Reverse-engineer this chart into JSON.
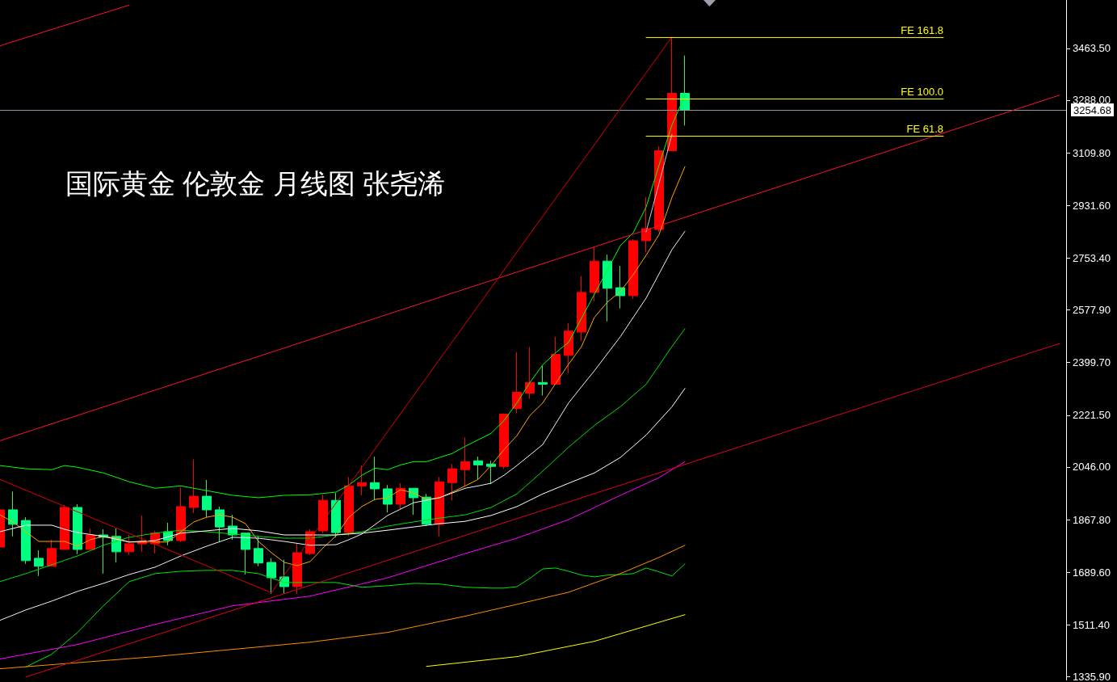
{
  "chart_data": {
    "type": "candlestick",
    "title": "国际黄金 伦敦金 月线图 张尧浠",
    "categories": [
      null,
      null,
      null,
      null,
      null,
      null,
      null,
      null,
      null,
      null,
      null,
      null,
      null,
      null,
      null,
      null,
      null,
      null,
      null,
      null,
      null,
      null,
      null,
      null,
      null,
      null,
      null,
      null,
      null,
      null,
      null,
      null,
      null,
      null,
      null,
      null,
      null,
      null,
      null,
      null,
      null,
      null,
      null,
      null,
      null,
      null,
      null,
      null,
      null,
      null,
      null,
      null,
      null,
      null,
      null,
      null,
      null,
      null,
      null,
      null,
      null,
      null,
      null,
      null,
      null,
      null,
      null,
      null,
      null,
      null,
      null,
      null,
      null,
      null,
      null,
      null,
      null,
      null,
      null,
      null,
      null,
      null,
      null
    ],
    "ohlc": [
      [
        1775,
        1909,
        1767,
        1901
      ],
      [
        1901,
        1963,
        1811,
        1852
      ],
      [
        1865,
        1876,
        1718,
        1729
      ],
      [
        1737,
        1764,
        1677,
        1710
      ],
      [
        1710,
        1800,
        1710,
        1770
      ],
      [
        1767,
        1917,
        1767,
        1909
      ],
      [
        1909,
        1920,
        1751,
        1767
      ],
      [
        1767,
        1838,
        1767,
        1816
      ],
      [
        1816,
        1835,
        1685,
        1808
      ],
      [
        1811,
        1838,
        1723,
        1759
      ],
      [
        1759,
        1816,
        1748,
        1786
      ],
      [
        1786,
        1882,
        1759,
        1794
      ],
      [
        1786,
        1830,
        1753,
        1822
      ],
      [
        1827,
        1857,
        1781,
        1797
      ],
      [
        1797,
        1977,
        1792,
        1912
      ],
      [
        1909,
        2072,
        1890,
        1947
      ],
      [
        1947,
        2002,
        1876,
        1901
      ],
      [
        1901,
        1912,
        1792,
        1843
      ],
      [
        1846,
        1884,
        1800,
        1816
      ],
      [
        1822,
        1824,
        1682,
        1767
      ],
      [
        1770,
        1813,
        1710,
        1721
      ],
      [
        1723,
        1737,
        1617,
        1671
      ],
      [
        1674,
        1732,
        1617,
        1641
      ],
      [
        1641,
        1789,
        1617,
        1756
      ],
      [
        1753,
        1835,
        1748,
        1827
      ],
      [
        1830,
        1952,
        1822,
        1933
      ],
      [
        1933,
        1958,
        1808,
        1824
      ],
      [
        1824,
        2012,
        1813,
        1982
      ],
      [
        1982,
        2051,
        1950,
        1993
      ],
      [
        1993,
        2081,
        1933,
        1972
      ],
      [
        1972,
        1985,
        1892,
        1920
      ],
      [
        1920,
        1991,
        1903,
        1974
      ],
      [
        1974,
        1974,
        1884,
        1942
      ],
      [
        1944,
        1955,
        1846,
        1852
      ],
      [
        1852,
        2012,
        1811,
        1996
      ],
      [
        1993,
        2056,
        1933,
        2040
      ],
      [
        2037,
        2146,
        1980,
        2064
      ],
      [
        2067,
        2081,
        2002,
        2053
      ],
      [
        2056,
        2067,
        1988,
        2048
      ],
      [
        2048,
        2228,
        2040,
        2225
      ],
      [
        2244,
        2435,
        2228,
        2299
      ],
      [
        2296,
        2452,
        2277,
        2332
      ],
      [
        2332,
        2389,
        2288,
        2326
      ],
      [
        2326,
        2487,
        2326,
        2427
      ],
      [
        2424,
        2533,
        2364,
        2506
      ],
      [
        2503,
        2692,
        2473,
        2637
      ],
      [
        2637,
        2790,
        2607,
        2743
      ],
      [
        2743,
        2765,
        2539,
        2651
      ],
      [
        2653,
        2727,
        2583,
        2626
      ],
      [
        2626,
        2817,
        2615,
        2812
      ],
      [
        2812,
        2959,
        2773,
        2853
      ],
      [
        2850,
        3131,
        2842,
        3117
      ],
      [
        3117,
        3502,
        3117,
        3311
      ],
      [
        3311,
        3439,
        3202,
        3254.68
      ],
      null,
      null,
      null,
      null,
      null,
      null,
      null,
      null,
      null,
      null,
      null,
      null,
      null,
      null,
      null,
      null,
      null,
      null,
      null,
      null,
      null,
      null,
      null,
      null,
      null,
      null,
      null,
      null,
      null
    ],
    "colors": [
      "#ff0000",
      "#00ff80",
      "#00ff80",
      "#00ff80",
      "#ff0000",
      "#ff0000",
      "#00ff80",
      "#ff0000",
      "#00ff80",
      "#00ff80",
      "#ff0000",
      "#ff0000",
      "#ff0000",
      "#00ff80",
      "#ff0000",
      "#ff0000",
      "#00ff80",
      "#00ff80",
      "#00ff80",
      "#00ff80",
      "#00ff80",
      "#00ff80",
      "#00ff80",
      "#ff0000",
      "#ff0000",
      "#ff0000",
      "#00ff80",
      "#ff0000",
      "#ff0000",
      "#00ff80",
      "#00ff80",
      "#ff0000",
      "#00ff80",
      "#00ff80",
      "#ff0000",
      "#ff0000",
      "#ff0000",
      "#00ff80",
      "#00ff80",
      "#ff0000",
      "#ff0000",
      "#ff0000",
      "#00ff80",
      "#ff0000",
      "#ff0000",
      "#ff0000",
      "#ff0000",
      "#00ff80",
      "#00ff80",
      "#ff0000",
      "#ff0000",
      "#ff0000",
      "#ff0000",
      "#00ff80",
      null,
      null,
      null,
      null,
      null,
      null,
      null,
      null,
      null,
      null,
      null,
      null,
      null,
      null,
      null,
      null,
      null,
      null,
      null,
      null,
      null,
      null,
      null,
      null,
      null,
      null,
      null,
      null,
      null
    ],
    "series": [
      {
        "type": "line",
        "color": "#ffa500",
        "values": [
          1884,
          1860,
          1827,
          1794,
          1794,
          1794,
          1778,
          1800,
          1811,
          1805,
          1792,
          1792,
          1792,
          1792,
          1827,
          1860,
          1876,
          1884,
          1876,
          1854,
          1794,
          1756,
          1723,
          1712,
          1726,
          1772,
          1813,
          1876,
          1912,
          1936,
          1942,
          1969,
          1958,
          1936,
          1942,
          1961,
          1982,
          2004,
          2051,
          2105,
          2152,
          2220,
          2263,
          2329,
          2394,
          2454,
          2553,
          2604,
          2640,
          2697,
          2763,
          2833,
          2959,
          3063,
          null,
          null,
          null,
          null,
          null,
          null,
          null,
          null,
          null,
          null,
          null,
          null,
          null,
          null,
          null,
          null,
          null,
          null,
          null,
          null,
          null,
          null,
          null,
          null,
          null,
          null,
          null,
          null,
          null
        ]
      },
      {
        "type": "line",
        "color": "#00ff00",
        "values": [
          2051,
          null,
          2040,
          null,
          2037,
          2051,
          2045,
          null,
          2026,
          null,
          1996,
          null,
          1974,
          null,
          1982,
          null,
          1966,
          null,
          1950,
          null,
          1942,
          null,
          1950,
          null,
          1952,
          null,
          1961,
          1985,
          2018,
          2042,
          2037,
          2053,
          2064,
          2064,
          2078,
          2092,
          2116,
          2138,
          2160,
          2203,
          2263,
          2332,
          2392,
          2433,
          2468,
          2550,
          2631,
          2713,
          2795,
          2839,
          2926,
          3068,
          3204,
          3305,
          null,
          null,
          null,
          null,
          null,
          null,
          null,
          null,
          null,
          null,
          null,
          null,
          null,
          null,
          null,
          null,
          null,
          null,
          null,
          null,
          null,
          null,
          null,
          null,
          null,
          null,
          null,
          null,
          null
        ]
      },
      {
        "type": "line",
        "color": "#00dd00",
        "values": [
          1658,
          null,
          1685,
          null,
          1715,
          null,
          1745,
          null,
          1781,
          null,
          1808,
          null,
          1822,
          null,
          1832,
          null,
          1827,
          null,
          1819,
          null,
          1811,
          null,
          1805,
          null,
          1805,
          null,
          1816,
          null,
          1827,
          null,
          1846,
          null,
          1860,
          null,
          1873,
          null,
          1884,
          null,
          1909,
          null,
          1955,
          null,
          2032,
          null,
          2113,
          null,
          2187,
          null,
          2250,
          null,
          2326,
          null,
          2454,
          2514,
          null,
          null,
          null,
          null,
          null,
          null,
          null,
          null,
          null,
          null,
          null,
          null,
          null,
          null,
          null,
          null,
          null,
          null,
          null,
          null,
          null,
          null,
          null,
          null,
          null,
          null,
          null,
          null,
          null
        ]
      },
      {
        "type": "line",
        "color": "#00e600",
        "values": [
          null,
          null,
          1369,
          null,
          1412,
          null,
          1486,
          null,
          1576,
          null,
          1658,
          null,
          1685,
          null,
          1693,
          null,
          1696,
          null,
          1696,
          null,
          1685,
          null,
          1655,
          null,
          1655,
          null,
          1655,
          null,
          1639,
          null,
          1644,
          null,
          1652,
          null,
          1650,
          null,
          1639,
          null,
          1636,
          1636,
          1641,
          1669,
          1701,
          1704,
          1693,
          1680,
          1674,
          1680,
          1682,
          1685,
          1704,
          1691,
          1677,
          1718,
          null,
          null,
          null,
          null,
          null,
          null,
          null,
          null,
          null,
          null,
          null,
          null,
          null,
          null,
          null,
          null,
          null,
          null,
          null,
          null,
          null,
          null,
          null,
          null,
          null,
          null,
          null,
          null,
          null
        ]
      },
      {
        "type": "line",
        "color": "#ffffff",
        "values": [
          1827,
          null,
          1849,
          null,
          1849,
          1835,
          1824,
          null,
          1811,
          null,
          1792,
          null,
          1797,
          null,
          1822,
          null,
          1830,
          null,
          1838,
          null,
          1830,
          null,
          1816,
          null,
          1816,
          null,
          1816,
          null,
          1822,
          null,
          1832,
          null,
          1843,
          null,
          1854,
          null,
          1862,
          null,
          1882,
          null,
          1912,
          null,
          1955,
          null,
          1991,
          null,
          2026,
          null,
          2078,
          null,
          2154,
          null,
          2250,
          2312,
          null,
          null,
          null,
          null,
          null,
          null,
          null,
          null,
          null,
          null,
          null,
          null,
          null,
          null,
          null,
          null,
          null,
          null,
          null,
          null,
          null,
          null,
          null,
          null,
          null,
          null,
          null,
          null,
          null
        ]
      },
      {
        "type": "line",
        "color": "#f0f0f0",
        "values": [
          1527,
          null,
          1562,
          null,
          1592,
          null,
          1625,
          null,
          1652,
          null,
          1682,
          null,
          1707,
          null,
          1745,
          null,
          1778,
          null,
          1808,
          null,
          1805,
          null,
          1794,
          null,
          1781,
          null,
          1783,
          1800,
          1819,
          null,
          1882,
          null,
          1925,
          null,
          1942,
          null,
          1974,
          1982,
          1991,
          2018,
          2051,
          null,
          2122,
          null,
          2263,
          2318,
          2372,
          null,
          2487,
          null,
          2618,
          null,
          2782,
          2844,
          null,
          null,
          null,
          null,
          null,
          null,
          null,
          null,
          null,
          null,
          null,
          null,
          null,
          null,
          null,
          null,
          null,
          null,
          null,
          null,
          null,
          null,
          null,
          null,
          null,
          null,
          null,
          null,
          null
        ]
      },
      {
        "type": "line",
        "color": "#ff00ff",
        "values": [
          1396,
          null,
          null,
          null,
          null,
          null,
          1445,
          null,
          null,
          null,
          null,
          null,
          1513,
          null,
          null,
          null,
          null,
          null,
          1576,
          null,
          null,
          null,
          null,
          null,
          1609,
          null,
          null,
          null,
          null,
          null,
          1671,
          null,
          null,
          null,
          null,
          null,
          1753,
          null,
          null,
          null,
          1805,
          null,
          null,
          null,
          1868,
          null,
          null,
          null,
          1950,
          null,
          null,
          2010,
          null,
          2064,
          null,
          null,
          null,
          null,
          null,
          null,
          null,
          null,
          null,
          null,
          null,
          null,
          null,
          null,
          null,
          null,
          null,
          null,
          null,
          null,
          null,
          null,
          null,
          null,
          null,
          null,
          null,
          null,
          null
        ]
      },
      {
        "type": "line",
        "color": "#ff8c00",
        "values": [
          1363,
          null,
          null,
          null,
          null,
          null,
          null,
          null,
          null,
          null,
          null,
          null,
          1404,
          null,
          null,
          null,
          null,
          null,
          null,
          null,
          null,
          null,
          null,
          null,
          1453,
          null,
          null,
          null,
          null,
          null,
          1486,
          null,
          null,
          null,
          null,
          null,
          1541,
          null,
          null,
          null,
          1581,
          null,
          null,
          null,
          1622,
          null,
          null,
          null,
          1685,
          null,
          null,
          1740,
          null,
          1781,
          null,
          null,
          null,
          null,
          null,
          null,
          null,
          null,
          null,
          null,
          null,
          null,
          null,
          null,
          null,
          null,
          null,
          null,
          null,
          null,
          null,
          null,
          null,
          null,
          null,
          null,
          null,
          null,
          null
        ]
      },
      {
        "type": "line",
        "color": "#ffff00",
        "values": [
          null,
          null,
          null,
          null,
          null,
          null,
          null,
          null,
          null,
          null,
          null,
          null,
          null,
          null,
          null,
          null,
          null,
          null,
          null,
          null,
          null,
          null,
          null,
          null,
          null,
          null,
          null,
          null,
          null,
          null,
          null,
          null,
          null,
          1371,
          null,
          null,
          null,
          null,
          null,
          null,
          1404,
          null,
          null,
          null,
          null,
          null,
          1456,
          null,
          null,
          null,
          null,
          null,
          null,
          1546,
          null,
          null,
          null,
          null,
          null,
          null,
          null,
          null,
          null,
          null,
          null,
          null,
          null,
          null,
          null,
          null,
          null,
          null,
          null,
          null,
          null,
          null,
          null,
          null,
          null,
          null,
          null,
          null,
          null
        ]
      },
      {
        "type": "line",
        "color": "#c8c8c8",
        "values": [
          null,
          null,
          null,
          null,
          null,
          null,
          null,
          null,
          null,
          null,
          null,
          null,
          null,
          null,
          null,
          null,
          null,
          null,
          null,
          null,
          null,
          null,
          null,
          null,
          null,
          null,
          null,
          null,
          null,
          null,
          null,
          null,
          null,
          null,
          null,
          null,
          null,
          null,
          null,
          null,
          null,
          null,
          null,
          null,
          null,
          null,
          null,
          null,
          null,
          null,
          2842,
          null,
          3172,
          null,
          null,
          null,
          null,
          null,
          null,
          null,
          null,
          null,
          null,
          null,
          null,
          null,
          null,
          null,
          null,
          null,
          null,
          null,
          null,
          null,
          null,
          null,
          null,
          null,
          null,
          null,
          null,
          null,
          null
        ]
      },
      {
        "type": "line",
        "color": "#ff1030",
        "values": [
          2135,
          null,
          null,
          null,
          null,
          null,
          null,
          null,
          null,
          null,
          null,
          null,
          null,
          null,
          null,
          null,
          null,
          null,
          null,
          null,
          null,
          null,
          null,
          null,
          null,
          null,
          null,
          null,
          null,
          null,
          null,
          null,
          null,
          null,
          null,
          null,
          null,
          null,
          null,
          null,
          null,
          null,
          null,
          null,
          null,
          null,
          null,
          null,
          null,
          null,
          null,
          null,
          null,
          null,
          null,
          null,
          null,
          null,
          null,
          null,
          null,
          null,
          null,
          null,
          null,
          null,
          null,
          null,
          null,
          null,
          null,
          null,
          null,
          null,
          null,
          null,
          null,
          null,
          null,
          null,
          null,
          null,
          3305
        ]
      },
      {
        "type": "line",
        "color": "#ff1030",
        "values": [
          3472,
          null,
          null,
          null,
          null,
          null,
          null,
          null,
          null,
          null,
          3610,
          null,
          null,
          null,
          null,
          null,
          null,
          null,
          null,
          null,
          null,
          null,
          null,
          null,
          null,
          null,
          null,
          null,
          null,
          null,
          null,
          null,
          null,
          null,
          null,
          null,
          null,
          null,
          null,
          null,
          null,
          null,
          null,
          null,
          null,
          null,
          null,
          null,
          null,
          null,
          null,
          null,
          null,
          null,
          null,
          null,
          null,
          null,
          null,
          null,
          null,
          null,
          null,
          null,
          null,
          null,
          null,
          null,
          null,
          null,
          null,
          null,
          null,
          null,
          null,
          null,
          null,
          null,
          null,
          null,
          null,
          null,
          null
        ]
      },
      {
        "type": "line",
        "color": "#e00020",
        "values": [
          null,
          null,
          1335,
          null,
          null,
          null,
          null,
          null,
          null,
          null,
          null,
          null,
          null,
          null,
          null,
          null,
          null,
          null,
          null,
          null,
          null,
          null,
          null,
          null,
          null,
          null,
          null,
          null,
          null,
          null,
          null,
          null,
          null,
          null,
          null,
          null,
          null,
          null,
          null,
          null,
          null,
          null,
          null,
          null,
          null,
          null,
          null,
          null,
          null,
          null,
          null,
          null,
          null,
          null,
          null,
          null,
          null,
          null,
          null,
          null,
          null,
          null,
          null,
          null,
          null,
          null,
          null,
          null,
          null,
          null,
          null,
          null,
          null,
          null,
          null,
          null,
          null,
          null,
          null,
          null,
          null,
          null,
          2464
        ]
      },
      {
        "type": "line",
        "color": "#e00000",
        "values": [
          2004,
          null,
          null,
          null,
          null,
          null,
          null,
          null,
          null,
          null,
          null,
          null,
          null,
          null,
          null,
          null,
          null,
          null,
          null,
          null,
          null,
          1620,
          null,
          null,
          null,
          null,
          null,
          null,
          null,
          null,
          null,
          null,
          null,
          null,
          null,
          null,
          null,
          null,
          null,
          null,
          null,
          null,
          null,
          null,
          null,
          null,
          null,
          null,
          null,
          null,
          null,
          null,
          null,
          null,
          null,
          null,
          null,
          null,
          null,
          null,
          null,
          null,
          null,
          null,
          null,
          null,
          null,
          null,
          null,
          null,
          null,
          null,
          null,
          null,
          null,
          null,
          null,
          null,
          null,
          null,
          null,
          null,
          null
        ]
      },
      {
        "type": "line",
        "color": "#e00000",
        "values": [
          null,
          null,
          null,
          null,
          null,
          null,
          null,
          null,
          null,
          null,
          null,
          null,
          null,
          null,
          null,
          null,
          null,
          null,
          null,
          null,
          null,
          1620,
          null,
          null,
          null,
          null,
          null,
          null,
          null,
          null,
          null,
          null,
          null,
          null,
          null,
          null,
          null,
          null,
          null,
          null,
          null,
          null,
          null,
          null,
          null,
          null,
          null,
          null,
          null,
          null,
          null,
          null,
          3502,
          null,
          null,
          null,
          null,
          null,
          null,
          null,
          null,
          null,
          null,
          null,
          null,
          null,
          null,
          null,
          null,
          null,
          null,
          null,
          null,
          null,
          null,
          null,
          null,
          null,
          null,
          null,
          null,
          null,
          null
        ]
      },
      {
        "type": "line",
        "name": "FE 161.8",
        "color": "#ffff00",
        "values": [
          null,
          null,
          null,
          null,
          null,
          null,
          null,
          null,
          null,
          null,
          null,
          null,
          null,
          null,
          null,
          null,
          null,
          null,
          null,
          null,
          null,
          null,
          null,
          null,
          null,
          null,
          null,
          null,
          null,
          null,
          null,
          null,
          null,
          null,
          null,
          null,
          null,
          null,
          null,
          null,
          null,
          null,
          null,
          null,
          null,
          null,
          null,
          null,
          null,
          null,
          3500,
          null,
          null,
          null,
          null,
          null,
          null,
          null,
          null,
          null,
          null,
          null,
          null,
          null,
          null,
          null,
          null,
          null,
          null,
          null,
          null,
          null,
          null,
          3500,
          null,
          null,
          null,
          null,
          null,
          null,
          null,
          null,
          null
        ]
      },
      {
        "type": "line",
        "name": "FE 100.0",
        "color": "#ffff00",
        "values": [
          null,
          null,
          null,
          null,
          null,
          null,
          null,
          null,
          null,
          null,
          null,
          null,
          null,
          null,
          null,
          null,
          null,
          null,
          null,
          null,
          null,
          null,
          null,
          null,
          null,
          null,
          null,
          null,
          null,
          null,
          null,
          null,
          null,
          null,
          null,
          null,
          null,
          null,
          null,
          null,
          null,
          null,
          null,
          null,
          null,
          null,
          null,
          null,
          null,
          null,
          3292,
          null,
          null,
          null,
          null,
          null,
          null,
          null,
          null,
          null,
          null,
          null,
          null,
          null,
          null,
          null,
          null,
          null,
          null,
          null,
          null,
          null,
          null,
          3292,
          null,
          null,
          null,
          null,
          null,
          null,
          null,
          null,
          null
        ]
      },
      {
        "type": "line",
        "name": "FE 61.8",
        "color": "#ffff00",
        "values": [
          null,
          null,
          null,
          null,
          null,
          null,
          null,
          null,
          null,
          null,
          null,
          null,
          null,
          null,
          null,
          null,
          null,
          null,
          null,
          null,
          null,
          null,
          null,
          null,
          null,
          null,
          null,
          null,
          null,
          null,
          null,
          null,
          null,
          null,
          null,
          null,
          null,
          null,
          null,
          null,
          null,
          null,
          null,
          null,
          null,
          null,
          null,
          null,
          null,
          null,
          3166,
          null,
          null,
          null,
          null,
          null,
          null,
          null,
          null,
          null,
          null,
          null,
          null,
          null,
          null,
          null,
          null,
          null,
          null,
          null,
          null,
          null,
          null,
          3166,
          null,
          null,
          null,
          null,
          null,
          null,
          null,
          null,
          null
        ]
      }
    ],
    "ylim": [
      1325,
      3627
    ],
    "yticks": [
      {
        "value": 1335.9,
        "label": "1335.90"
      },
      {
        "value": 1511.4,
        "label": "1511.40"
      },
      {
        "value": 1689.6,
        "label": "1689.60"
      },
      {
        "value": 1867.8,
        "label": "1867.80"
      },
      {
        "value": 2046,
        "label": "2046.00"
      },
      {
        "value": 2221.5,
        "label": "2221.50"
      },
      {
        "value": 2399.7,
        "label": "2399.70"
      },
      {
        "value": 2577.9,
        "label": "2577.90"
      },
      {
        "value": 2753.4,
        "label": "2753.40"
      },
      {
        "value": 2931.6,
        "label": "2931.60"
      },
      {
        "value": 3109.8,
        "label": "3109.80"
      },
      {
        "value": 3288,
        "label": "3288.00"
      },
      {
        "value": 3463.5,
        "label": "3463.50"
      }
    ],
    "ref_lines": [
      {
        "axis": "y",
        "value": 3254.68,
        "label": "3254.68",
        "color": "#8a96a8"
      }
    ],
    "tick_labels": "y",
    "grid": false,
    "marker": "none"
  }
}
